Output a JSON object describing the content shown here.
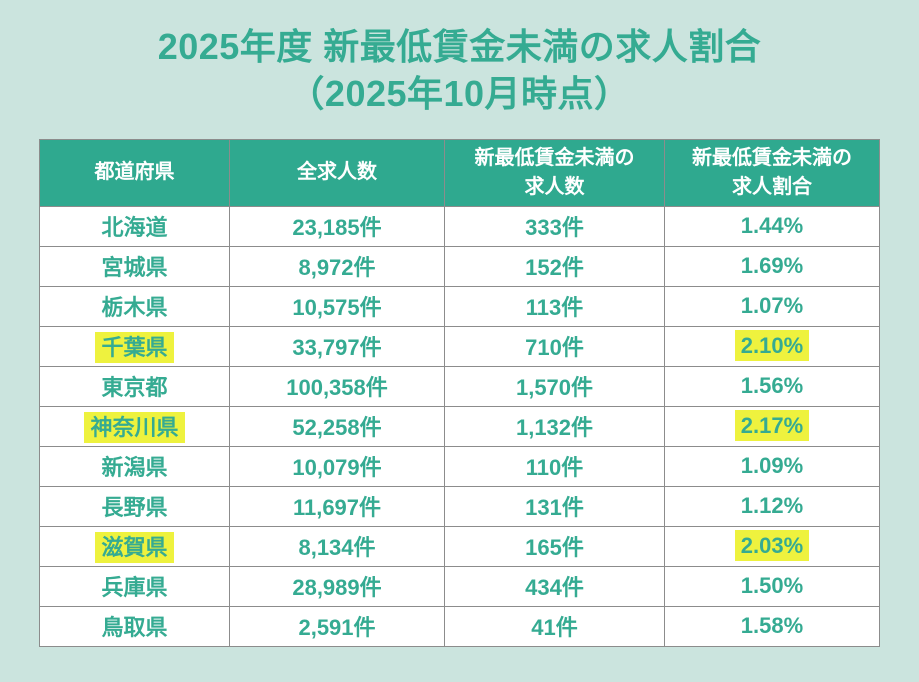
{
  "title": {
    "line1": "2025年度 新最低賃金未満の求人割合",
    "line2": "（2025年10月時点）"
  },
  "colors": {
    "background": "#cbe4de",
    "header_bg": "#2fa98f",
    "header_text": "#ffffff",
    "text_teal": "#35ab92",
    "cell_bg": "#ffffff",
    "grid_line": "#8c8c8c",
    "highlight_yellow": "#eef23e"
  },
  "table": {
    "headers": [
      "都道府県",
      "全求人数",
      "新最低賃金未満の\n求人数",
      "新最低賃金未満の\n求人割合"
    ],
    "rows": [
      {
        "prefecture": "北海道",
        "total": "23,185件",
        "below": "333件",
        "ratio": "1.44%",
        "highlight": false
      },
      {
        "prefecture": "宮城県",
        "total": "8,972件",
        "below": "152件",
        "ratio": "1.69%",
        "highlight": false
      },
      {
        "prefecture": "栃木県",
        "total": "10,575件",
        "below": "113件",
        "ratio": "1.07%",
        "highlight": false
      },
      {
        "prefecture": "千葉県",
        "total": "33,797件",
        "below": "710件",
        "ratio": "2.10%",
        "highlight": true
      },
      {
        "prefecture": "東京都",
        "total": "100,358件",
        "below": "1,570件",
        "ratio": "1.56%",
        "highlight": false
      },
      {
        "prefecture": "神奈川県",
        "total": "52,258件",
        "below": "1,132件",
        "ratio": "2.17%",
        "highlight": true
      },
      {
        "prefecture": "新潟県",
        "total": "10,079件",
        "below": "110件",
        "ratio": "1.09%",
        "highlight": false
      },
      {
        "prefecture": "長野県",
        "total": "11,697件",
        "below": "131件",
        "ratio": "1.12%",
        "highlight": false
      },
      {
        "prefecture": "滋賀県",
        "total": "8,134件",
        "below": "165件",
        "ratio": "2.03%",
        "highlight": true
      },
      {
        "prefecture": "兵庫県",
        "total": "28,989件",
        "below": "434件",
        "ratio": "1.50%",
        "highlight": false
      },
      {
        "prefecture": "鳥取県",
        "total": "2,591件",
        "below": "41件",
        "ratio": "1.58%",
        "highlight": false
      }
    ]
  },
  "chart_data": {
    "type": "table",
    "title": "2025年度 新最低賃金未満の求人割合（2025年10月時点）",
    "columns": [
      "都道府県",
      "全求人数",
      "新最低賃金未満の求人数",
      "新最低賃金未満の求人割合"
    ],
    "rows": [
      [
        "北海道",
        23185,
        333,
        1.44
      ],
      [
        "宮城県",
        8972,
        152,
        1.69
      ],
      [
        "栃木県",
        10575,
        113,
        1.07
      ],
      [
        "千葉県",
        33797,
        710,
        2.1
      ],
      [
        "東京都",
        100358,
        1570,
        1.56
      ],
      [
        "神奈川県",
        52258,
        1132,
        2.17
      ],
      [
        "新潟県",
        10079,
        110,
        1.09
      ],
      [
        "長野県",
        11697,
        131,
        1.12
      ],
      [
        "滋賀県",
        8134,
        165,
        2.03
      ],
      [
        "兵庫県",
        28989,
        434,
        1.5
      ],
      [
        "鳥取県",
        2591,
        41,
        1.58
      ]
    ],
    "units": {
      "total": "件",
      "below": "件",
      "ratio": "%"
    },
    "highlighted_rows": [
      "千葉県",
      "神奈川県",
      "滋賀県"
    ],
    "layout": {
      "grid": true,
      "header_style": "teal-band",
      "highlight_style": "yellow-marker"
    }
  }
}
